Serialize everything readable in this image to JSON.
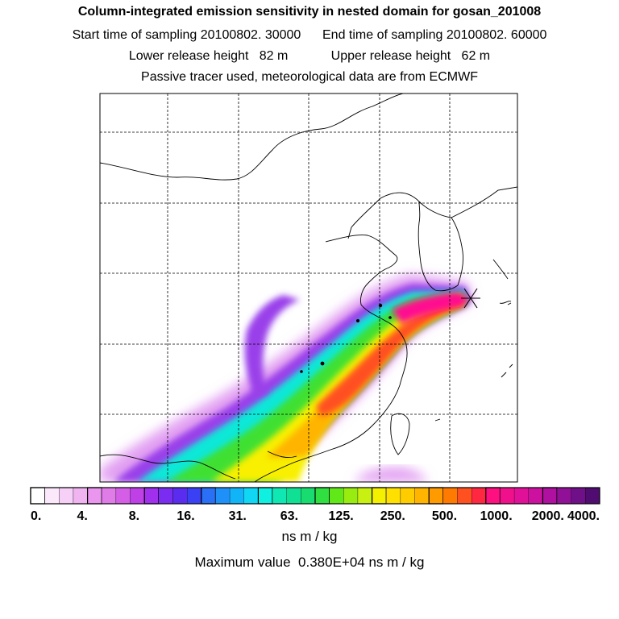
{
  "title": "Column-integrated emission sensitivity in nested domain for gosan_201008",
  "sampling": {
    "start": "Start time of sampling 20100802. 30000",
    "end": "End time of sampling 20100802. 60000"
  },
  "release": {
    "lower": "Lower release height   82 m",
    "upper": "Upper release height   62 m"
  },
  "note": "Passive tracer used, meteorological data are from ECMWF",
  "colorbar": {
    "unit": "ns m / kg",
    "labels": [
      "0.",
      "4.",
      "8.",
      "16.",
      "31.",
      "63.",
      "125.",
      "250.",
      "500.",
      "1000.",
      "2000.",
      "4000."
    ],
    "colors": [
      "#ffffff",
      "#fbe8fb",
      "#f7d0f7",
      "#f0b4f0",
      "#ea96ee",
      "#e07ce8",
      "#d45ee6",
      "#c040e8",
      "#a030ee",
      "#7a2cf0",
      "#5a2cf0",
      "#3a40f4",
      "#2a70f6",
      "#1e90f8",
      "#12b4f8",
      "#10d8f4",
      "#10f0e0",
      "#10e8b4",
      "#10e094",
      "#18dc70",
      "#30e040",
      "#60e818",
      "#98ec10",
      "#c8f010",
      "#f4f000",
      "#ffe000",
      "#ffcc00",
      "#ffb400",
      "#ff9a00",
      "#ff7a00",
      "#ff5020",
      "#ff2840",
      "#ff1080",
      "#f0108c",
      "#e01098",
      "#cc10a0",
      "#b010a0",
      "#901098",
      "#701088",
      "#500c70"
    ]
  },
  "max_value": "Maximum value  0.380E+04 ns m / kg",
  "map": {
    "receptor": "gosan",
    "plume_colors": {
      "outer": "#e2a0f2",
      "violet": "#9a40ea",
      "blue": "#2a70f6",
      "cyan": "#10e8d8",
      "green": "#40e030",
      "yellow": "#f8f000",
      "orange": "#ffb400",
      "red": "#ff5020",
      "magenta": "#ff1090"
    }
  }
}
